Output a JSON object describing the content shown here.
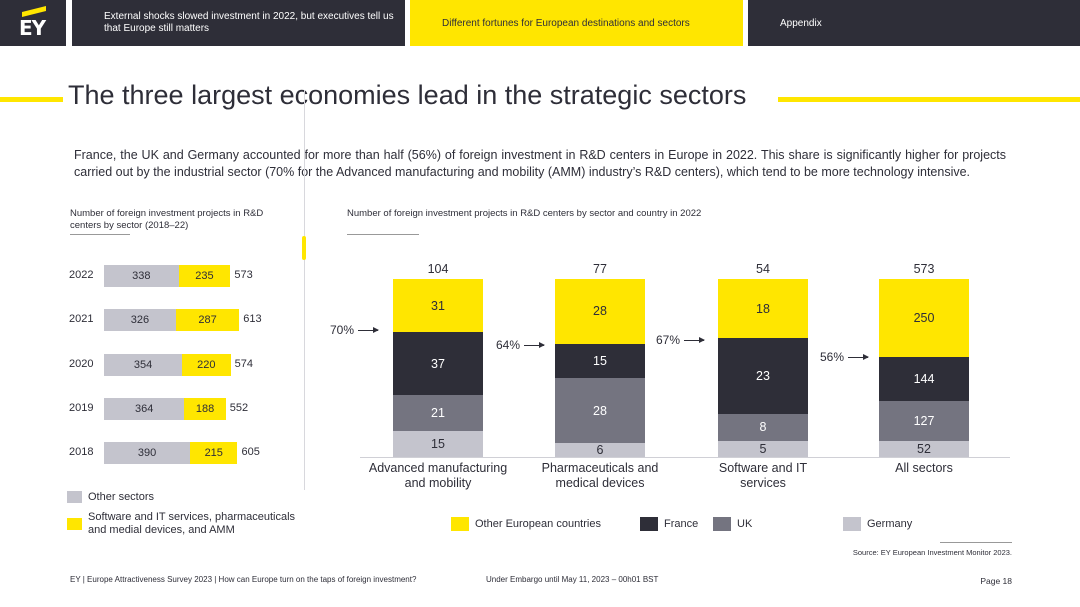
{
  "nav": {
    "logo": "EY",
    "tabs": [
      {
        "label": "External shocks slowed investment in 2022, but executives tell us that Europe still matters"
      },
      {
        "label": "Different fortunes for European destinations and sectors"
      },
      {
        "label": "Appendix"
      }
    ]
  },
  "title": "The three largest economies lead in the strategic sectors",
  "intro": "France, the UK and Germany accounted for more than half (56%) of foreign investment in R&D centers in Europe in 2022. This share is significantly higher for projects carried out by the industrial sector (70% for the Advanced manufacturing and mobility (AMM) industry’s R&D centers), which tend to be more technology intensive.",
  "chart_data": [
    {
      "type": "bar",
      "orientation": "horizontal",
      "stacked": true,
      "title": "Number of foreign investment projects in R&D centers by sector (2018–22)",
      "categories": [
        "2022",
        "2021",
        "2020",
        "2019",
        "2018"
      ],
      "series": [
        {
          "name": "Other sectors",
          "values": [
            338,
            326,
            354,
            364,
            390
          ],
          "color": "#C4C4CD"
        },
        {
          "name": "Software and IT services, pharmaceuticals and medial devices, and AMM",
          "values": [
            235,
            287,
            220,
            188,
            215
          ],
          "color": "#FFE600"
        }
      ],
      "totals": [
        573,
        613,
        574,
        552,
        605
      ]
    },
    {
      "type": "bar",
      "stacked": true,
      "title": "Number of foreign investment projects in R&D centers by sector and country in 2022",
      "categories": [
        "Advanced manufacturing and mobility",
        "Pharmaceuticals and medical devices",
        "Software and IT services",
        "All sectors"
      ],
      "series": [
        {
          "name": "Germany",
          "values": [
            15,
            6,
            5,
            52
          ],
          "color": "#C4C4CD"
        },
        {
          "name": "UK",
          "values": [
            21,
            28,
            8,
            127
          ],
          "color": "#747480"
        },
        {
          "name": "France",
          "values": [
            37,
            15,
            23,
            144
          ],
          "color": "#2E2E38"
        },
        {
          "name": "Other European countries",
          "values": [
            31,
            28,
            18,
            250
          ],
          "color": "#FFE600"
        }
      ],
      "totals": [
        "104",
        "77",
        "54",
        "573"
      ],
      "annotations": [
        "70%",
        "64%",
        "67%",
        "56%"
      ],
      "legend_order": [
        "Other European countries",
        "France",
        "UK",
        "Germany"
      ]
    }
  ],
  "source": "Source: EY European Investment Monitor 2023.",
  "footer": {
    "left": "EY | Europe Attractiveness Survey 2023 | How can Europe turn on the taps of foreign investment?",
    "center": "Under Embargo until May 11, 2023 – 00h01 BST",
    "page": "Page 18"
  }
}
